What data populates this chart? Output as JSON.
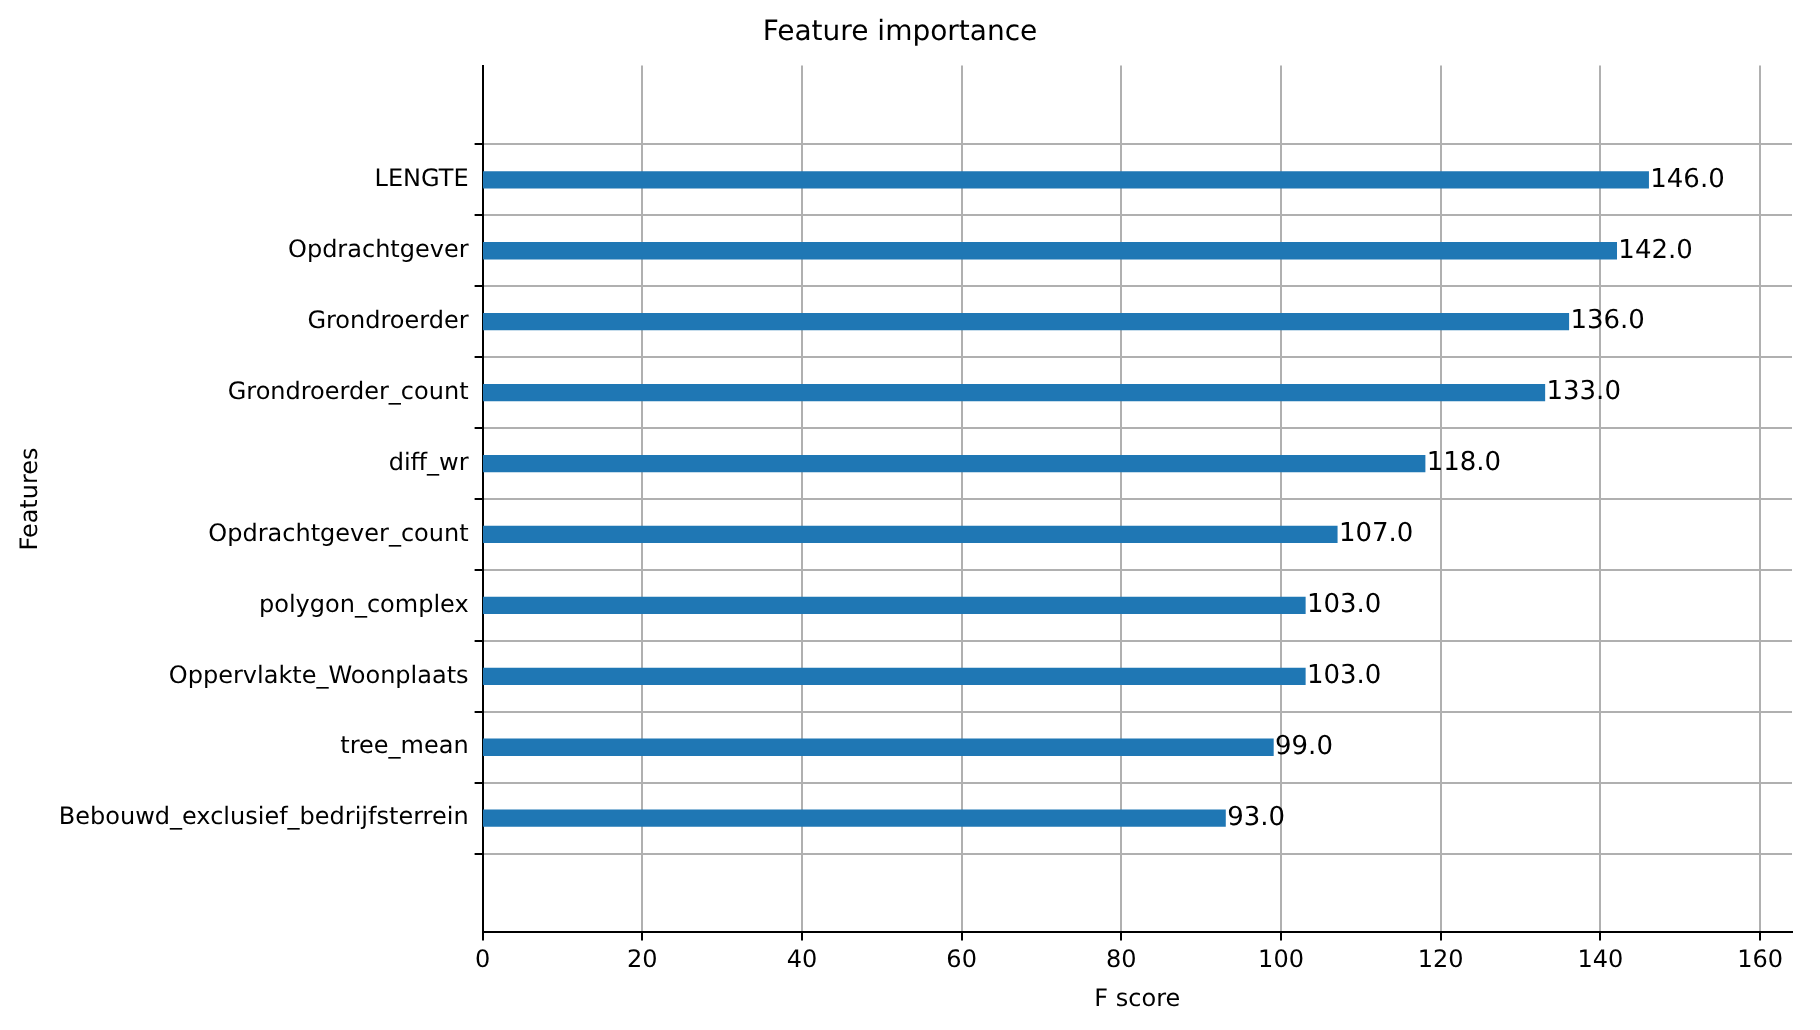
{
  "chart_data": {
    "type": "bar",
    "orientation": "horizontal",
    "title": "Feature importance",
    "xlabel": "F score",
    "ylabel": "Features",
    "categories": [
      "LENGTE",
      "Opdrachtgever",
      "Grondroerder",
      "Grondroerder_count",
      "diff_wr",
      "Opdrachtgever_count",
      "polygon_complex",
      "Oppervlakte_Woonplaats",
      "tree_mean",
      "Bebouwd_exclusief_bedrijfsterrein"
    ],
    "values": [
      146,
      142,
      136,
      133,
      118,
      107,
      103,
      103,
      99,
      93
    ],
    "value_labels": [
      "146.0",
      "142.0",
      "136.0",
      "133.0",
      "118.0",
      "107.0",
      "103.0",
      "103.0",
      "99.0",
      "93.0"
    ],
    "color": "#1f77b4",
    "xlim": [
      0,
      164
    ],
    "xticks": [
      0,
      20,
      40,
      60,
      80,
      100,
      120,
      140,
      160
    ],
    "grid": true
  }
}
